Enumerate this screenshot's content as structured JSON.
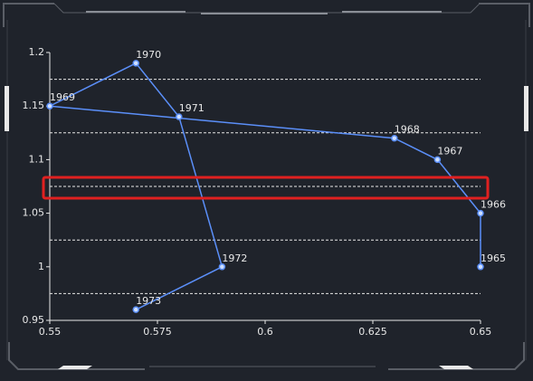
{
  "chart_data": {
    "type": "line",
    "x": [
      0.65,
      0.65,
      0.64,
      0.63,
      0.55,
      0.57,
      0.58,
      0.59,
      0.57
    ],
    "series": [
      {
        "color": "#5b8ff9",
        "values": [
          1.0,
          1.05,
          1.1,
          1.12,
          1.15,
          1.19,
          1.14,
          1.0,
          0.96
        ],
        "labels": [
          "1965",
          "1966",
          "1967",
          "1968",
          "1969",
          "1970",
          "1971",
          "1972",
          "1973"
        ]
      }
    ],
    "xlim": [
      0.55,
      0.65
    ],
    "xticks": [
      0.55,
      0.575,
      0.6,
      0.625,
      0.65
    ],
    "ylim": [
      0.95,
      1.2
    ],
    "yticks": [
      0.95,
      1,
      1.05,
      1.1,
      1.15,
      1.2
    ],
    "dashed_lines": [
      0.975,
      1.025,
      1.075,
      1.125,
      1.175
    ]
  }
}
